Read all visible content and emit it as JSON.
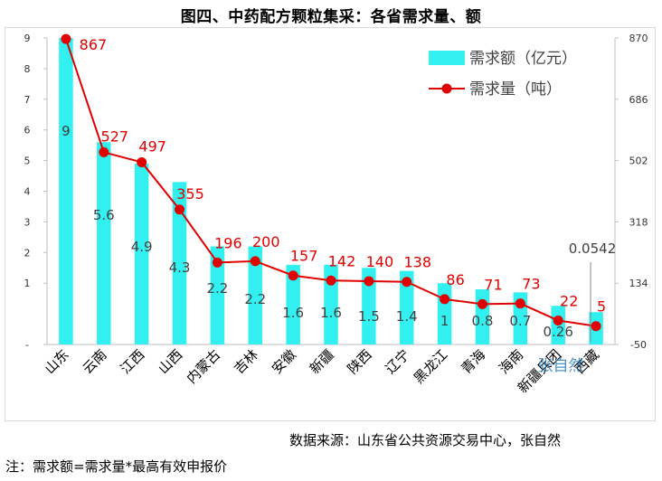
{
  "title": "图四、中药配方颗粒集采：各省需求量、额",
  "source": "数据来源：山东省公共资源交易中心，张自然",
  "note": "注：需求额=需求量*最高有效申报价",
  "watermark": "张自然",
  "colors": {
    "bar": "#33f0f0",
    "line": "#e00000",
    "label_red": "#e00000",
    "text": "#333333"
  },
  "chart_data": {
    "type": "bar+line",
    "categories": [
      "山东",
      "云南",
      "江西",
      "山西",
      "内蒙古",
      "吉林",
      "安徽",
      "新疆",
      "陕西",
      "辽宁",
      "黑龙江",
      "青海",
      "海南",
      "新疆兵团",
      "西藏"
    ],
    "series": [
      {
        "name": "需求额（亿元）",
        "kind": "bar",
        "axis": "left",
        "values": [
          9,
          5.6,
          4.9,
          4.3,
          2.2,
          2.2,
          1.6,
          1.6,
          1.5,
          1.4,
          1,
          0.8,
          0.7,
          0.26,
          0.0542
        ],
        "labels": [
          "9",
          "5.6",
          "4.9",
          "4.3",
          "2.2",
          "2.2",
          "1.6",
          "1.6",
          "1.5",
          "1.4",
          "1",
          "0.8",
          "0.7",
          "0.26",
          "0.0542"
        ]
      },
      {
        "name": "需求量（吨）",
        "kind": "line",
        "axis": "right",
        "values": [
          867,
          527,
          497,
          355,
          196,
          200,
          157,
          142,
          140,
          138,
          86,
          71,
          73,
          22,
          5
        ],
        "labels": [
          "867",
          "527",
          "497",
          "355",
          "196",
          "200",
          "157",
          "142",
          "140",
          "138",
          "86",
          "71",
          "73",
          "22",
          "5"
        ]
      }
    ],
    "left_axis": {
      "min": -1,
      "max": 9,
      "ticks": [
        -1,
        1,
        2,
        3,
        4,
        5,
        6,
        7,
        8,
        9
      ],
      "tick_labels": [
        "-",
        "1",
        "2",
        "3",
        "4",
        "5",
        "6",
        "7",
        "8",
        "9"
      ]
    },
    "right_axis": {
      "min": -50,
      "max": 870,
      "ticks": [
        -50,
        134,
        318,
        502,
        686,
        870
      ],
      "tick_labels": [
        "-50",
        "134",
        "318",
        "502",
        "686",
        "870"
      ]
    },
    "legend": [
      "需求额（亿元）",
      "需求量（吨）"
    ],
    "legend_position": "top-right"
  }
}
